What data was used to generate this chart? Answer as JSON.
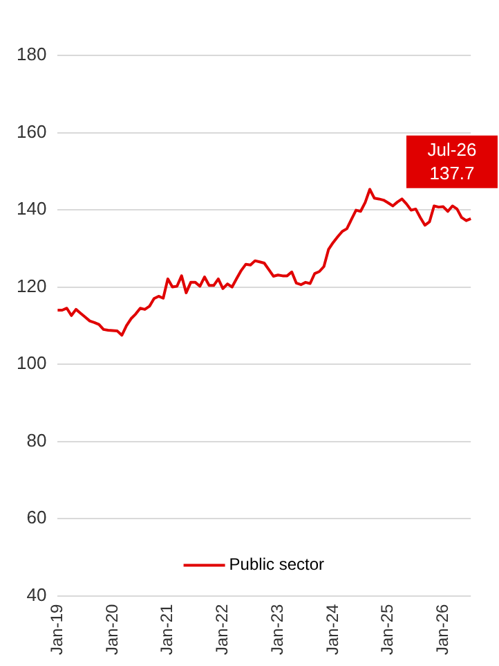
{
  "chart_data": {
    "type": "line",
    "categories": [
      "Jan-19",
      null,
      null,
      null,
      null,
      null,
      null,
      null,
      null,
      null,
      null,
      null,
      "Jan-20",
      null,
      null,
      null,
      null,
      null,
      null,
      null,
      null,
      null,
      null,
      null,
      "Jan-21",
      null,
      null,
      null,
      null,
      null,
      null,
      null,
      null,
      null,
      null,
      null,
      "Jan-22",
      null,
      null,
      null,
      null,
      null,
      null,
      null,
      null,
      null,
      null,
      null,
      "Jan-23",
      null,
      null,
      null,
      null,
      null,
      null,
      null,
      null,
      null,
      null,
      null,
      "Jan-24",
      null,
      null,
      null,
      null,
      null,
      null,
      null,
      null,
      null,
      null,
      null,
      "Jan-25",
      null,
      null,
      null,
      null,
      null,
      null,
      null,
      null,
      null,
      null,
      null,
      "Jan-26",
      null,
      null,
      null,
      null,
      null,
      null
    ],
    "series": [
      {
        "name": "Public sector",
        "color": "#e00000",
        "values": [
          114,
          114,
          114.5,
          112.6,
          114.2,
          113.2,
          112.2,
          111.2,
          110.8,
          110.3,
          109,
          108.8,
          108.7,
          108.6,
          107.5,
          110,
          111.8,
          113,
          114.5,
          114.2,
          115,
          117,
          117.6,
          117.1,
          122.1,
          120,
          120.2,
          122.9,
          118.5,
          121.2,
          121.2,
          120.2,
          122.6,
          120.4,
          120.4,
          122.1,
          119.6,
          120.8,
          120,
          122.2,
          124.3,
          125.9,
          125.7,
          126.8,
          126.5,
          126.2,
          124.5,
          122.8,
          123.1,
          122.9,
          122.9,
          123.9,
          121,
          120.6,
          121.2,
          120.9,
          123.5,
          124,
          125.3,
          129.7,
          131.5,
          133,
          134.4,
          135.1,
          137.5,
          139.9,
          139.6,
          141.9,
          145.3,
          143,
          142.8,
          142.5,
          141.8,
          141,
          142,
          142.8,
          141.5,
          139.9,
          140.2,
          138,
          136,
          136.9,
          141,
          140.7,
          140.8,
          139.6,
          141,
          140.2,
          138,
          137.2,
          137.7
        ]
      }
    ],
    "ylim": [
      40,
      180
    ],
    "yticks": [
      40,
      60,
      80,
      100,
      120,
      140,
      160,
      180
    ],
    "grid": "y",
    "legend": "bottom",
    "marker": "none",
    "line_style": "solid",
    "annotations": [
      "Jul-26\n137.7"
    ]
  }
}
